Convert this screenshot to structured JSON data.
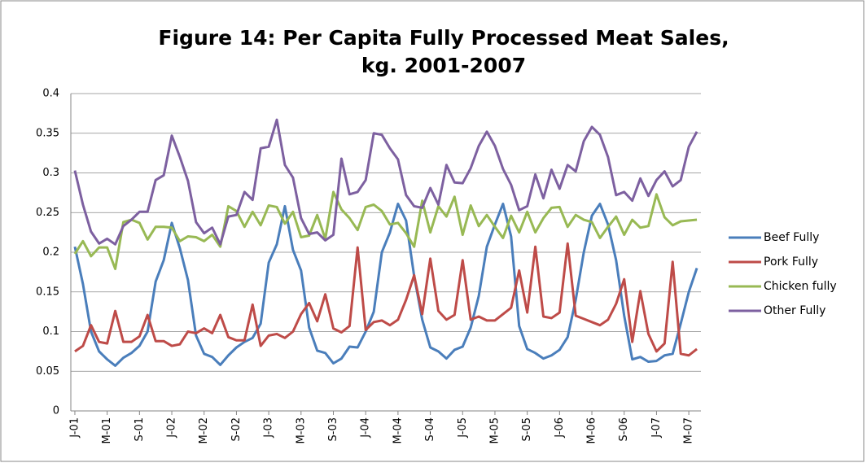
{
  "chart_data": {
    "type": "line",
    "title": [
      "Figure 14: Per Capita Fully Processed Meat Sales,",
      "kg. 2001-2007"
    ],
    "categories": [
      "J-01",
      null,
      null,
      null,
      "M-01",
      null,
      null,
      null,
      "S-01",
      null,
      null,
      null,
      "J-02",
      null,
      null,
      null,
      "M-02",
      null,
      null,
      null,
      "S-02",
      null,
      null,
      null,
      "J-03",
      null,
      null,
      null,
      "M-03",
      null,
      null,
      null,
      "S-03",
      null,
      null,
      null,
      "J-04",
      null,
      null,
      null,
      "M-04",
      null,
      null,
      null,
      "S-04",
      null,
      null,
      null,
      "J-05",
      null,
      null,
      null,
      "M-05",
      null,
      null,
      null,
      "S-05",
      null,
      null,
      null,
      "J-06",
      null,
      null,
      null,
      "M-06",
      null,
      null,
      null,
      "S-06",
      null,
      null,
      null,
      "J-07",
      null,
      null,
      null,
      "M-07",
      null
    ],
    "series": [
      {
        "name": "Beef Fully",
        "color": "#4a7ebb",
        "values": [
          0.207,
          0.16,
          0.1,
          0.075,
          0.065,
          0.057,
          0.067,
          0.073,
          0.082,
          0.1,
          0.163,
          0.19,
          0.237,
          0.205,
          0.165,
          0.095,
          0.072,
          0.068,
          0.058,
          0.07,
          0.08,
          0.087,
          0.092,
          0.11,
          0.187,
          0.21,
          0.258,
          0.203,
          0.177,
          0.105,
          0.076,
          0.073,
          0.06,
          0.066,
          0.081,
          0.08,
          0.1,
          0.125,
          0.2,
          0.225,
          0.261,
          0.24,
          0.17,
          0.115,
          0.08,
          0.075,
          0.066,
          0.077,
          0.081,
          0.105,
          0.145,
          0.207,
          0.235,
          0.261,
          0.22,
          0.107,
          0.078,
          0.073,
          0.066,
          0.07,
          0.077,
          0.093,
          0.14,
          0.2,
          0.246,
          0.261,
          0.235,
          0.19,
          0.12,
          0.065,
          0.068,
          0.062,
          0.063,
          0.07,
          0.072,
          0.11,
          0.15,
          0.18
        ]
      },
      {
        "name": "Pork Fully",
        "color": "#be4b48",
        "values": [
          0.075,
          0.082,
          0.108,
          0.087,
          0.085,
          0.126,
          0.087,
          0.087,
          0.094,
          0.121,
          0.088,
          0.088,
          0.082,
          0.084,
          0.1,
          0.098,
          0.104,
          0.098,
          0.121,
          0.093,
          0.089,
          0.089,
          0.134,
          0.082,
          0.095,
          0.097,
          0.092,
          0.1,
          0.122,
          0.136,
          0.113,
          0.147,
          0.104,
          0.099,
          0.107,
          0.206,
          0.102,
          0.112,
          0.114,
          0.108,
          0.115,
          0.14,
          0.171,
          0.122,
          0.192,
          0.126,
          0.115,
          0.121,
          0.19,
          0.115,
          0.119,
          0.114,
          0.114,
          0.122,
          0.13,
          0.177,
          0.124,
          0.207,
          0.119,
          0.117,
          0.124,
          0.211,
          0.12,
          0.116,
          0.112,
          0.108,
          0.115,
          0.135,
          0.166,
          0.087,
          0.151,
          0.097,
          0.075,
          0.085,
          0.188,
          0.072,
          0.07,
          0.078
        ]
      },
      {
        "name": "Chicken fully",
        "color": "#98b954",
        "values": [
          0.198,
          0.214,
          0.195,
          0.206,
          0.206,
          0.179,
          0.238,
          0.241,
          0.237,
          0.216,
          0.232,
          0.232,
          0.231,
          0.214,
          0.22,
          0.219,
          0.214,
          0.222,
          0.207,
          0.258,
          0.252,
          0.232,
          0.251,
          0.234,
          0.259,
          0.257,
          0.236,
          0.251,
          0.219,
          0.221,
          0.247,
          0.217,
          0.276,
          0.254,
          0.243,
          0.228,
          0.257,
          0.26,
          0.252,
          0.235,
          0.237,
          0.224,
          0.207,
          0.265,
          0.225,
          0.258,
          0.245,
          0.27,
          0.222,
          0.259,
          0.233,
          0.247,
          0.232,
          0.218,
          0.246,
          0.225,
          0.251,
          0.225,
          0.243,
          0.256,
          0.257,
          0.232,
          0.247,
          0.241,
          0.238,
          0.218,
          0.232,
          0.245,
          0.222,
          0.241,
          0.231,
          0.233,
          0.273,
          0.244,
          0.234,
          0.239,
          0.24,
          0.241
        ]
      },
      {
        "name": "Other Fully",
        "color": "#7d60a0",
        "values": [
          0.303,
          0.26,
          0.226,
          0.211,
          0.217,
          0.21,
          0.233,
          0.241,
          0.251,
          0.251,
          0.291,
          0.297,
          0.347,
          0.32,
          0.29,
          0.238,
          0.224,
          0.231,
          0.21,
          0.245,
          0.247,
          0.276,
          0.266,
          0.331,
          0.333,
          0.367,
          0.31,
          0.294,
          0.243,
          0.223,
          0.225,
          0.215,
          0.222,
          0.318,
          0.273,
          0.276,
          0.291,
          0.35,
          0.348,
          0.331,
          0.317,
          0.272,
          0.258,
          0.256,
          0.281,
          0.26,
          0.31,
          0.288,
          0.287,
          0.306,
          0.334,
          0.352,
          0.334,
          0.305,
          0.285,
          0.253,
          0.258,
          0.298,
          0.268,
          0.304,
          0.28,
          0.31,
          0.302,
          0.34,
          0.358,
          0.348,
          0.32,
          0.272,
          0.276,
          0.265,
          0.293,
          0.271,
          0.291,
          0.302,
          0.283,
          0.291,
          0.333,
          0.352
        ]
      }
    ],
    "ylim": [
      0,
      0.4
    ],
    "yticks": [
      0,
      0.05,
      0.1,
      0.15,
      0.2,
      0.25,
      0.3,
      0.35,
      0.4
    ],
    "grid": true,
    "legend": "right"
  }
}
